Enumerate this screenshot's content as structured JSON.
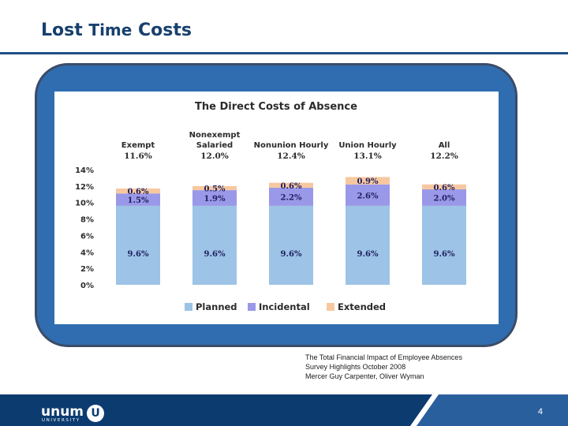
{
  "slide": {
    "title_part1": "Lost",
    "title_part2": "Time",
    "title_part3": "Costs",
    "page_number": "4"
  },
  "source": {
    "line1": "The Total Financial Impact of Employee Absences",
    "line2": "Survey Highlights October 2008",
    "line3": "Mercer  Guy Carpenter, Oliver Wyman"
  },
  "footer": {
    "logo_text": "unum",
    "logo_badge": "U",
    "logo_sub": "UNIVERSITY"
  },
  "colors": {
    "title": "#17406d",
    "frame": "#2f6db0",
    "footer": "#0c3b70",
    "planned": "#9dc3e6",
    "incidental": "#9a98e8",
    "extended": "#f7c8a0"
  },
  "chart_data": {
    "type": "bar",
    "stacked": true,
    "title": "The Direct Costs of Absence",
    "categories": [
      {
        "label_lines": [
          "Exempt"
        ],
        "total": "11.6%"
      },
      {
        "label_lines": [
          "Nonexempt",
          "Salaried"
        ],
        "total": "12.0%"
      },
      {
        "label_lines": [
          "Nonunion Hourly"
        ],
        "total": "12.4%"
      },
      {
        "label_lines": [
          "Union Hourly"
        ],
        "total": "13.1%"
      },
      {
        "label_lines": [
          "All"
        ],
        "total": "12.2%"
      }
    ],
    "series": [
      {
        "name": "Planned",
        "values": [
          9.6,
          9.6,
          9.6,
          9.6,
          9.6
        ],
        "labels": [
          "9.6%",
          "9.6%",
          "9.6%",
          "9.6%",
          "9.6%"
        ]
      },
      {
        "name": "Incidental",
        "values": [
          1.5,
          1.9,
          2.2,
          2.6,
          2.0
        ],
        "labels": [
          "1.5%",
          "1.9%",
          "2.2%",
          "2.6%",
          "2.0%"
        ]
      },
      {
        "name": "Extended",
        "values": [
          0.6,
          0.5,
          0.6,
          0.9,
          0.6
        ],
        "labels": [
          "0.6%",
          "0.5%",
          "0.6%",
          "0.9%",
          "0.6%"
        ]
      }
    ],
    "yticks": [
      "0%",
      "2%",
      "4%",
      "6%",
      "8%",
      "10%",
      "12%",
      "14%"
    ],
    "ylim": [
      0,
      14
    ],
    "legend_position": "bottom",
    "grid": false
  }
}
